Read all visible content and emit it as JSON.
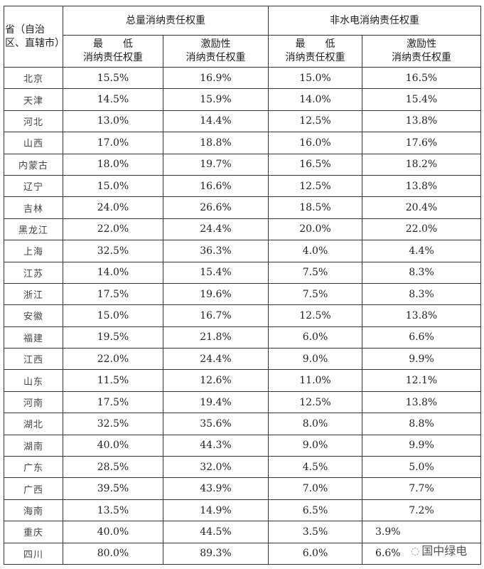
{
  "header": {
    "province": "省（自治区、直辖市）",
    "group_total": "总量消纳责任权重",
    "group_nonhydro": "非水电消纳责任权重",
    "sub_min_1": "最　　低",
    "sub_min_2": "消纳责任权重",
    "sub_inc_1": "激励性",
    "sub_inc_2": "消纳责任权重"
  },
  "rows": [
    {
      "p": "北京",
      "a": "15.5%",
      "b": "16.9%",
      "c": "15.0%",
      "d": "16.5%"
    },
    {
      "p": "天津",
      "a": "14.5%",
      "b": "15.9%",
      "c": "14.0%",
      "d": "15.4%"
    },
    {
      "p": "河北",
      "a": "13.0%",
      "b": "14.4%",
      "c": "12.5%",
      "d": "13.8%"
    },
    {
      "p": "山西",
      "a": "17.0%",
      "b": "18.8%",
      "c": "16.0%",
      "d": "17.6%"
    },
    {
      "p": "内蒙古",
      "a": "18.0%",
      "b": "19.7%",
      "c": "16.5%",
      "d": "18.2%"
    },
    {
      "p": "辽宁",
      "a": "15.0%",
      "b": "16.6%",
      "c": "12.5%",
      "d": "13.8%"
    },
    {
      "p": "吉林",
      "a": "24.0%",
      "b": "26.6%",
      "c": "18.5%",
      "d": "20.4%"
    },
    {
      "p": "黑龙江",
      "a": "22.0%",
      "b": "24.4%",
      "c": "20.0%",
      "d": "22.0%"
    },
    {
      "p": "上海",
      "a": "32.5%",
      "b": "36.3%",
      "c": "4.0%",
      "d": "4.4%"
    },
    {
      "p": "江苏",
      "a": "14.0%",
      "b": "15.4%",
      "c": "7.5%",
      "d": "8.3%"
    },
    {
      "p": "浙江",
      "a": "17.5%",
      "b": "19.6%",
      "c": "7.5%",
      "d": "8.3%"
    },
    {
      "p": "安徽",
      "a": "15.0%",
      "b": "16.7%",
      "c": "12.5%",
      "d": "13.8%"
    },
    {
      "p": "福建",
      "a": "19.5%",
      "b": "21.8%",
      "c": "6.0%",
      "d": "6.6%"
    },
    {
      "p": "江西",
      "a": "22.0%",
      "b": "24.4%",
      "c": "9.0%",
      "d": "9.9%"
    },
    {
      "p": "山东",
      "a": "11.5%",
      "b": "12.6%",
      "c": "11.0%",
      "d": "12.1%"
    },
    {
      "p": "河南",
      "a": "17.5%",
      "b": "19.4%",
      "c": "12.5%",
      "d": "13.8%"
    },
    {
      "p": "湖北",
      "a": "32.5%",
      "b": "35.6%",
      "c": "8.0%",
      "d": "8.8%"
    },
    {
      "p": "湖南",
      "a": "40.0%",
      "b": "44.3%",
      "c": "9.0%",
      "d": "9.9%"
    },
    {
      "p": "广东",
      "a": "28.5%",
      "b": "32.0%",
      "c": "4.5%",
      "d": "5.0%"
    },
    {
      "p": "广西",
      "a": "39.5%",
      "b": "43.9%",
      "c": "7.0%",
      "d": "7.7%"
    },
    {
      "p": "海南",
      "a": "13.5%",
      "b": "14.9%",
      "c": "6.5%",
      "d": "7.2%"
    },
    {
      "p": "重庆",
      "a": "40.0%",
      "b": "44.5%",
      "c": "3.5%",
      "d": "3.9%"
    },
    {
      "p": "四川",
      "a": "80.0%",
      "b": "89.3%",
      "c": "6.0%",
      "d": "6.6%"
    }
  ],
  "watermark": {
    "icon": "wechat-icon",
    "text": "国中绿电"
  }
}
